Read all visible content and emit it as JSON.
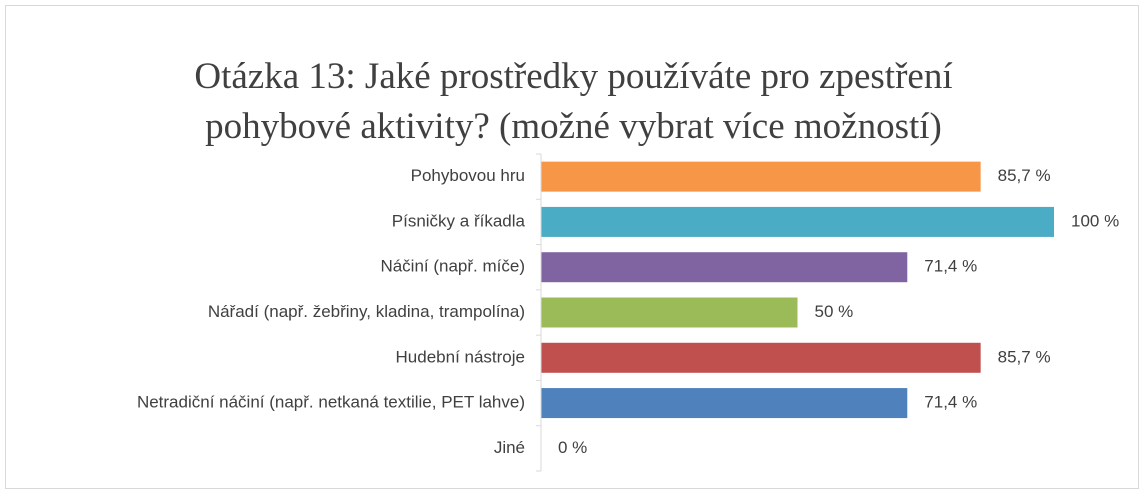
{
  "chart_data": {
    "type": "hbar",
    "title": "Otázka 13: Jaké prostředky používáte pro zpestření pohybové aktivity? (možné vybrat více možností)",
    "categories": [
      "Pohybovou hru",
      "Písničky a říkadla",
      "Náčiní (např. míče)",
      "Nářadí (např. žebřiny, kladina, trampolína)",
      "Hudební nástroje",
      "Netradiční náčiní (např. netkaná textilie, PET lahve)",
      "Jiné"
    ],
    "values": [
      85.7,
      100,
      71.4,
      50,
      85.7,
      71.4,
      0
    ],
    "value_labels": [
      "85,7 %",
      "100 %",
      "71,4 %",
      "50 %",
      "85,7 %",
      "71,4 %",
      "0 %"
    ],
    "colors": [
      "#f79646",
      "#4bacc6",
      "#8064a2",
      "#9bbb59",
      "#c0504d",
      "#4f81bd",
      "#4f81bd"
    ]
  }
}
